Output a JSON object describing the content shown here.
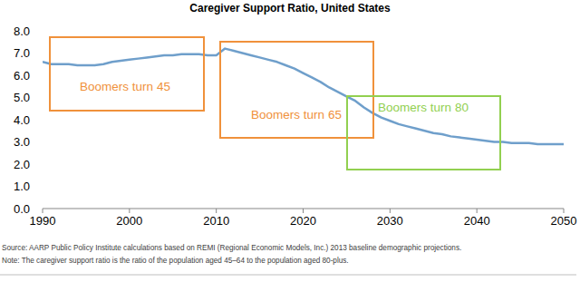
{
  "chart_data": {
    "type": "line",
    "title": "Caregiver Support Ratio, United States",
    "x": [
      1990,
      1991,
      1992,
      1993,
      1994,
      1995,
      1996,
      1997,
      1998,
      1999,
      2000,
      2001,
      2002,
      2003,
      2004,
      2005,
      2006,
      2007,
      2008,
      2009,
      2010,
      2011,
      2012,
      2013,
      2014,
      2015,
      2016,
      2017,
      2018,
      2019,
      2020,
      2021,
      2022,
      2023,
      2024,
      2025,
      2026,
      2027,
      2028,
      2029,
      2030,
      2031,
      2032,
      2033,
      2034,
      2035,
      2036,
      2037,
      2038,
      2039,
      2040,
      2041,
      2042,
      2043,
      2044,
      2045,
      2046,
      2047,
      2048,
      2049,
      2050
    ],
    "values": [
      6.6,
      6.5,
      6.5,
      6.5,
      6.45,
      6.45,
      6.45,
      6.5,
      6.6,
      6.65,
      6.7,
      6.75,
      6.8,
      6.85,
      6.9,
      6.9,
      6.95,
      6.95,
      6.95,
      6.9,
      6.9,
      7.2,
      7.1,
      7.0,
      6.9,
      6.8,
      6.7,
      6.6,
      6.45,
      6.3,
      6.1,
      5.9,
      5.7,
      5.45,
      5.25,
      5.05,
      4.85,
      4.55,
      4.3,
      4.1,
      3.95,
      3.8,
      3.7,
      3.6,
      3.5,
      3.4,
      3.35,
      3.25,
      3.2,
      3.15,
      3.1,
      3.05,
      3.0,
      3.0,
      2.95,
      2.95,
      2.95,
      2.9,
      2.9,
      2.9,
      2.9
    ],
    "color": "#6f9fcb",
    "xlim": [
      1990,
      2050
    ],
    "xticks": [
      1990,
      2000,
      2010,
      2020,
      2030,
      2040,
      2050
    ],
    "ylim": [
      0,
      8
    ],
    "yticks": [
      {
        "value": 0,
        "label": "0.0"
      },
      {
        "value": 1,
        "label": "1.0"
      },
      {
        "value": 2,
        "label": "2.0"
      },
      {
        "value": 3,
        "label": "3.0"
      },
      {
        "value": 4,
        "label": "4.0"
      },
      {
        "value": 5,
        "label": "5.0"
      },
      {
        "value": 6,
        "label": "6.0"
      },
      {
        "value": 7,
        "label": "7.0"
      },
      {
        "value": 8,
        "label": "8.0"
      }
    ],
    "grid": false,
    "annotations": [
      {
        "text": "Boomers turn 45",
        "color": "#f0913b"
      },
      {
        "text": "Boomers turn 65",
        "color": "#f0913b"
      },
      {
        "text": "Boomers turn 80",
        "color": "#92d050"
      }
    ],
    "source": "Source: AARP Public Policy Institute calculations based on REMI (Regional Economic Models, Inc.) 2013 baseline demographic projections.",
    "note": "Note: The caregiver support ratio is the ratio of the population aged 45–64 to the population aged 80-plus."
  }
}
